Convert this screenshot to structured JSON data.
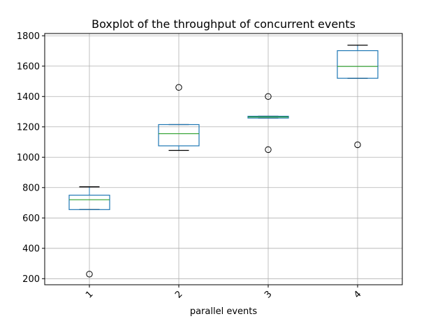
{
  "chart_data": {
    "type": "boxplot",
    "title": "Boxplot of the throughput of concurrent events",
    "xlabel": "parallel events",
    "ylabel": "",
    "categories": [
      "1",
      "2",
      "3",
      "4"
    ],
    "ylim": [
      160,
      1815
    ],
    "yticks": [
      200,
      400,
      600,
      800,
      1000,
      1200,
      1400,
      1600,
      1800
    ],
    "grid": true,
    "x_tick_rotation": 45,
    "colors": {
      "box": "#1f77b4",
      "median": "#2ca02c",
      "whisker": "#000000",
      "flier": "#000000",
      "grid": "#b0b0b0"
    },
    "boxes": [
      {
        "category": "1",
        "whisker_low": 655,
        "q1": 655,
        "median": 720,
        "q3": 750,
        "whisker_high": 805,
        "fliers": [
          230
        ]
      },
      {
        "category": "2",
        "whisker_low": 1045,
        "q1": 1075,
        "median": 1155,
        "q3": 1215,
        "whisker_high": 1215,
        "fliers": [
          1460
        ]
      },
      {
        "category": "3",
        "whisker_low": 1258,
        "q1": 1258,
        "median": 1265,
        "q3": 1270,
        "whisker_high": 1270,
        "fliers": [
          1050,
          1400
        ]
      },
      {
        "category": "4",
        "whisker_low": 1520,
        "q1": 1520,
        "median": 1598,
        "q3": 1702,
        "whisker_high": 1738,
        "fliers": [
          1082
        ]
      }
    ]
  }
}
